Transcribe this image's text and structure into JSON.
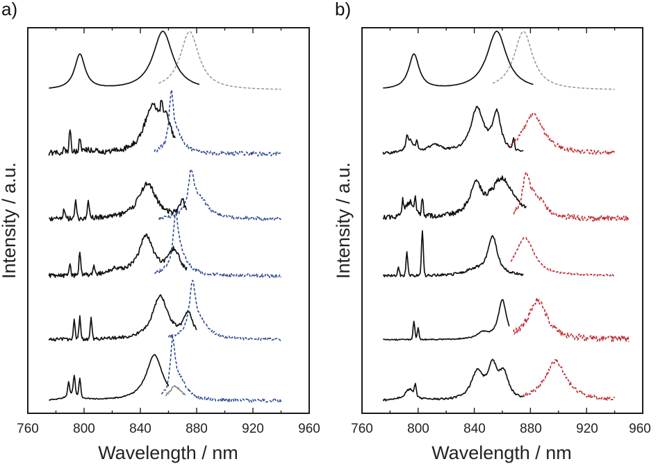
{
  "chart_data": [
    {
      "panel": "a)",
      "type": "line",
      "xlabel": "Wavelength / nm",
      "ylabel": "Intensity / a.u.",
      "xlim": [
        760,
        960
      ],
      "xticks": [
        760,
        800,
        840,
        880,
        920,
        960
      ],
      "yticks": "none",
      "grid": false,
      "colors": {
        "solid": "#111111",
        "reference_dashed": "#999999",
        "emission_dashed": "#2e4a94",
        "gray": "#8a8a8a"
      },
      "traces": [
        {
          "name": "a-top-absorption",
          "style": "solid",
          "color": "#111111",
          "x_range": [
            775,
            882
          ],
          "offset": 0.0,
          "scale": 1.0,
          "peaks": [
            [
              797,
              0.55,
              4.5
            ],
            [
              856,
              0.92,
              8.5
            ]
          ],
          "spikes": [],
          "noise": 0.002
        },
        {
          "name": "a-top-emission",
          "style": "dashed",
          "color": "#999999",
          "x_range": [
            853,
            940
          ],
          "offset": 0.0,
          "scale": 1.0,
          "peaks": [
            [
              875,
              0.92,
              8.0
            ]
          ],
          "spikes": [],
          "noise": 0.0
        },
        {
          "name": "a-1-absorption",
          "style": "solid",
          "color": "#111111",
          "x_range": [
            775,
            865
          ],
          "offset": 1.0,
          "scale": 1.0,
          "peaks": [
            [
              800,
              0.05,
              8
            ],
            [
              848,
              0.68,
              6.5
            ],
            [
              858,
              0.45,
              5
            ]
          ],
          "spikes": [
            [
              790,
              0.38
            ],
            [
              797,
              0.18
            ],
            [
              786,
              0.1
            ],
            [
              855,
              0.22
            ]
          ],
          "noise": 0.045
        },
        {
          "name": "a-1-emission",
          "style": "dashed",
          "color": "#2e4a94",
          "x_range": [
            850,
            940
          ],
          "offset": 1.0,
          "scale": 1.0,
          "peaks": [
            [
              862,
              0.8,
              1.8
            ],
            [
              866,
              0.28,
              6
            ]
          ],
          "spikes": [],
          "noise": 0.035
        },
        {
          "name": "a-2-absorption",
          "style": "solid",
          "color": "#111111",
          "x_range": [
            775,
            873
          ],
          "offset": 2.0,
          "scale": 1.0,
          "peaks": [
            [
              845,
              0.56,
              7.5
            ],
            [
              870,
              0.25,
              2.5
            ]
          ],
          "spikes": [
            [
              786,
              0.15
            ],
            [
              794,
              0.26
            ],
            [
              803,
              0.28
            ]
          ],
          "noise": 0.04
        },
        {
          "name": "a-2-emission",
          "style": "dashed",
          "color": "#2e4a94",
          "x_range": [
            853,
            940
          ],
          "offset": 2.0,
          "scale": 1.0,
          "peaks": [
            [
              876,
              0.6,
              2.5
            ],
            [
              882,
              0.3,
              7
            ]
          ],
          "spikes": [],
          "noise": 0.03
        },
        {
          "name": "a-3-absorption",
          "style": "solid",
          "color": "#111111",
          "x_range": [
            775,
            873
          ],
          "offset": 3.0,
          "scale": 1.0,
          "peaks": [
            [
              844,
              0.62,
              6
            ],
            [
              864,
              0.38,
              5
            ],
            [
              823,
              0.08,
              6
            ]
          ],
          "spikes": [
            [
              790,
              0.15
            ],
            [
              797,
              0.38
            ],
            [
              807,
              0.15
            ]
          ],
          "noise": 0.035
        },
        {
          "name": "a-3-emission",
          "style": "dashed",
          "color": "#2e4a94",
          "x_range": [
            850,
            940
          ],
          "offset": 3.0,
          "scale": 1.0,
          "peaks": [
            [
              865,
              0.7,
              2.0
            ],
            [
              868,
              0.35,
              6
            ]
          ],
          "spikes": [],
          "noise": 0.03
        },
        {
          "name": "a-4-absorption",
          "style": "solid",
          "color": "#111111",
          "x_range": [
            775,
            880
          ],
          "offset": 4.0,
          "scale": 1.0,
          "peaks": [
            [
              854,
              0.68,
              6.5
            ],
            [
              874,
              0.38,
              4
            ]
          ],
          "spikes": [
            [
              793,
              0.3
            ],
            [
              797,
              0.35
            ],
            [
              805,
              0.35
            ]
          ],
          "noise": 0.025
        },
        {
          "name": "a-4-emission",
          "style": "dashed",
          "color": "#2e4a94",
          "x_range": [
            860,
            940
          ],
          "offset": 4.0,
          "scale": 1.0,
          "peaks": [
            [
              877,
              0.75,
              2.5
            ],
            [
              882,
              0.25,
              8
            ]
          ],
          "spikes": [],
          "noise": 0.02
        },
        {
          "name": "a-5-absorption",
          "style": "solid",
          "color": "#111111",
          "x_range": [
            775,
            860
          ],
          "offset": 5.0,
          "scale": 1.0,
          "peaks": [
            [
              850,
              0.72,
              7
            ],
            [
              792,
              0.12,
              5
            ]
          ],
          "spikes": [
            [
              789,
              0.2
            ],
            [
              793,
              0.28
            ],
            [
              797,
              0.28
            ]
          ],
          "noise": 0.008
        },
        {
          "name": "a-5-gray",
          "style": "solid",
          "color": "#8a8a8a",
          "x_range": [
            858,
            872
          ],
          "offset": 5.0,
          "scale": 1.0,
          "peaks": [
            [
              865,
              0.22,
              6
            ]
          ],
          "spikes": [],
          "noise": 0.02
        },
        {
          "name": "a-5-emission",
          "style": "dashed",
          "color": "#2e4a94",
          "x_range": [
            855,
            940
          ],
          "offset": 5.0,
          "scale": 1.0,
          "peaks": [
            [
              863,
              0.82,
              2.0
            ],
            [
              868,
              0.3,
              6
            ]
          ],
          "spikes": [],
          "noise": 0.025
        }
      ]
    },
    {
      "panel": "b)",
      "type": "line",
      "xlabel": "Wavelength / nm",
      "ylabel": "Intensity / a.u.",
      "xlim": [
        760,
        960
      ],
      "xticks": [
        760,
        800,
        840,
        880,
        920,
        960
      ],
      "yticks": "none",
      "grid": false,
      "colors": {
        "solid": "#111111",
        "reference_dashed": "#999999",
        "emission_dashed": "#c0272d"
      },
      "traces": [
        {
          "name": "b-top-absorption",
          "style": "solid",
          "color": "#111111",
          "x_range": [
            775,
            882
          ],
          "offset": 0.0,
          "scale": 1.0,
          "peaks": [
            [
              797,
              0.55,
              4.5
            ],
            [
              856,
              0.92,
              8.5
            ]
          ],
          "spikes": [],
          "noise": 0.002
        },
        {
          "name": "b-top-emission",
          "style": "dashed",
          "color": "#999999",
          "x_range": [
            853,
            940
          ],
          "offset": 0.0,
          "scale": 1.0,
          "peaks": [
            [
              875,
              0.92,
              8.0
            ]
          ],
          "spikes": [],
          "noise": 0.0
        },
        {
          "name": "b-1-absorption",
          "style": "solid",
          "color": "#111111",
          "x_range": [
            775,
            875
          ],
          "offset": 1.0,
          "scale": 1.0,
          "peaks": [
            [
              842,
              0.7,
              5.5
            ],
            [
              856,
              0.6,
              3.5
            ],
            [
              812,
              0.12,
              6
            ],
            [
              794,
              0.2,
              3
            ]
          ],
          "spikes": [
            [
              792,
              0.15
            ],
            [
              799,
              0.15
            ],
            [
              868,
              0.18
            ]
          ],
          "noise": 0.02
        },
        {
          "name": "b-1-emission",
          "style": "dashed",
          "color": "#c0272d",
          "x_range": [
            866,
            940
          ],
          "offset": 1.0,
          "scale": 1.0,
          "peaks": [
            [
              882,
              0.62,
              9
            ]
          ],
          "spikes": [],
          "noise": 0.035
        },
        {
          "name": "b-2-absorption",
          "style": "solid",
          "color": "#111111",
          "x_range": [
            775,
            877
          ],
          "offset": 2.0,
          "scale": 1.0,
          "peaks": [
            [
              860,
              0.62,
              10
            ],
            [
              841,
              0.45,
              5
            ],
            [
              794,
              0.25,
              4
            ]
          ],
          "spikes": [
            [
              789,
              0.2
            ],
            [
              798,
              0.18
            ],
            [
              803,
              0.25
            ]
          ],
          "noise": 0.04
        },
        {
          "name": "b-2-emission",
          "style": "dashed",
          "color": "#c0272d",
          "x_range": [
            868,
            950
          ],
          "offset": 2.0,
          "scale": 1.0,
          "peaks": [
            [
              877,
              0.58,
              3
            ],
            [
              884,
              0.3,
              8
            ]
          ],
          "spikes": [],
          "noise": 0.045
        },
        {
          "name": "b-3-absorption",
          "style": "solid",
          "color": "#111111",
          "x_range": [
            775,
            875
          ],
          "offset": 3.0,
          "scale": 1.0,
          "peaks": [
            [
              853,
              0.62,
              4
            ],
            [
              840,
              0.08,
              8
            ]
          ],
          "spikes": [
            [
              792,
              0.38
            ],
            [
              803,
              0.72
            ],
            [
              786,
              0.12
            ]
          ],
          "noise": 0.02
        },
        {
          "name": "b-3-emission",
          "style": "dashed",
          "color": "#c0272d",
          "x_range": [
            866,
            940
          ],
          "offset": 3.0,
          "scale": 1.0,
          "peaks": [
            [
              876,
              0.6,
              8
            ]
          ],
          "spikes": [],
          "noise": 0.015
        },
        {
          "name": "b-4-absorption",
          "style": "solid",
          "color": "#111111",
          "x_range": [
            775,
            865
          ],
          "offset": 4.0,
          "scale": 1.0,
          "peaks": [
            [
              860,
              0.62,
              3.5
            ],
            [
              846,
              0.1,
              5
            ]
          ],
          "spikes": [
            [
              797,
              0.28
            ],
            [
              800,
              0.18
            ]
          ],
          "noise": 0.008
        },
        {
          "name": "b-4-emission",
          "style": "dashed",
          "color": "#c0272d",
          "x_range": [
            868,
            950
          ],
          "offset": 4.0,
          "scale": 1.0,
          "peaks": [
            [
              885,
              0.62,
              8
            ]
          ],
          "spikes": [],
          "noise": 0.05
        },
        {
          "name": "b-5-absorption",
          "style": "solid",
          "color": "#111111",
          "x_range": [
            775,
            875
          ],
          "offset": 5.0,
          "scale": 1.0,
          "peaks": [
            [
              842,
              0.42,
              5
            ],
            [
              853,
              0.5,
              4
            ],
            [
              861,
              0.38,
              4
            ],
            [
              794,
              0.18,
              4
            ]
          ],
          "spikes": [
            [
              798,
              0.16
            ]
          ],
          "noise": 0.015
        },
        {
          "name": "b-5-emission",
          "style": "dashed",
          "color": "#c0272d",
          "x_range": [
            875,
            940
          ],
          "offset": 5.0,
          "scale": 1.0,
          "peaks": [
            [
              898,
              0.62,
              9
            ]
          ],
          "spikes": [],
          "noise": 0.03
        }
      ]
    }
  ]
}
